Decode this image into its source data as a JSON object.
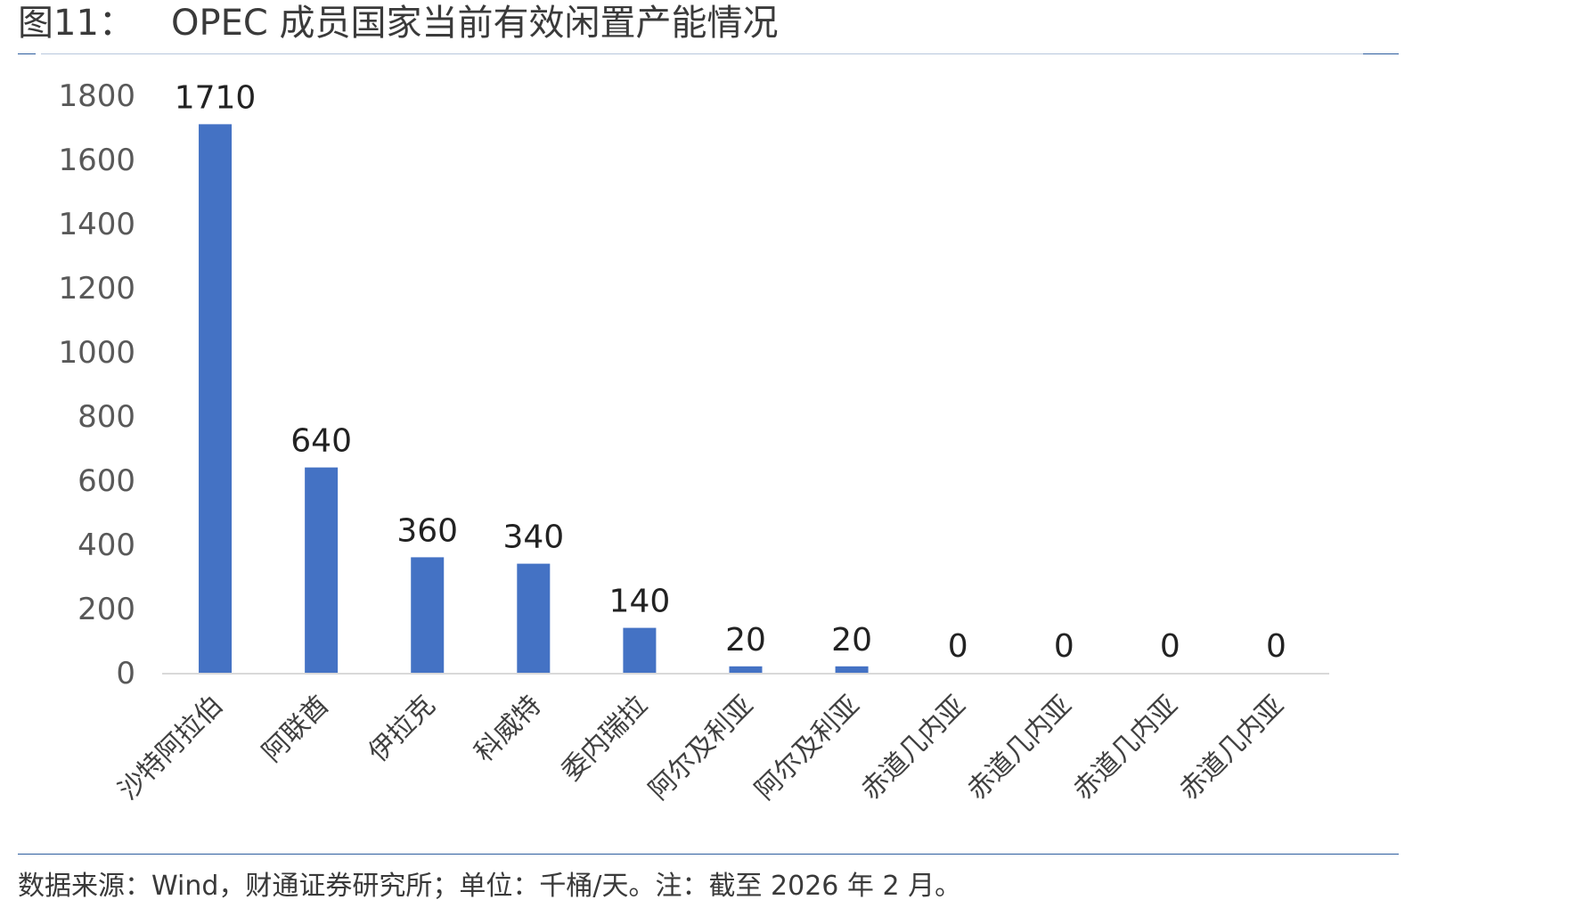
{
  "figure": {
    "number": "图11：",
    "title": "OPEC 成员国家当前有效闲置产能情况",
    "source": "数据来源：Wind，财通证券研究所；单位：千桶/天。注：截至 2026 年 2 月。"
  },
  "colors": {
    "bar": "#4472c4",
    "rule": "#2e5d9f",
    "axis": "#d9d9d9"
  },
  "chart_data": {
    "type": "bar",
    "title": "",
    "xlabel": "",
    "ylabel": "",
    "categories": [
      "沙特阿拉伯",
      "阿联酋",
      "伊拉克",
      "科威特",
      "委内瑞拉",
      "阿尔及利亚",
      "阿尔及利亚",
      "赤道几内亚",
      "赤道几内亚",
      "赤道几内亚",
      "赤道几内亚"
    ],
    "values": [
      1710,
      640,
      360,
      340,
      140,
      20,
      20,
      0,
      0,
      0,
      0
    ],
    "data_labels": [
      "1710",
      "640",
      "360",
      "340",
      "140",
      "20",
      "20",
      "0",
      "0",
      "0",
      "0"
    ],
    "ylim": [
      0,
      1800
    ],
    "yticks": [
      "0",
      "200",
      "400",
      "600",
      "800",
      "1000",
      "1200",
      "1400",
      "1600",
      "1800"
    ],
    "grid": false,
    "legend": "none"
  }
}
